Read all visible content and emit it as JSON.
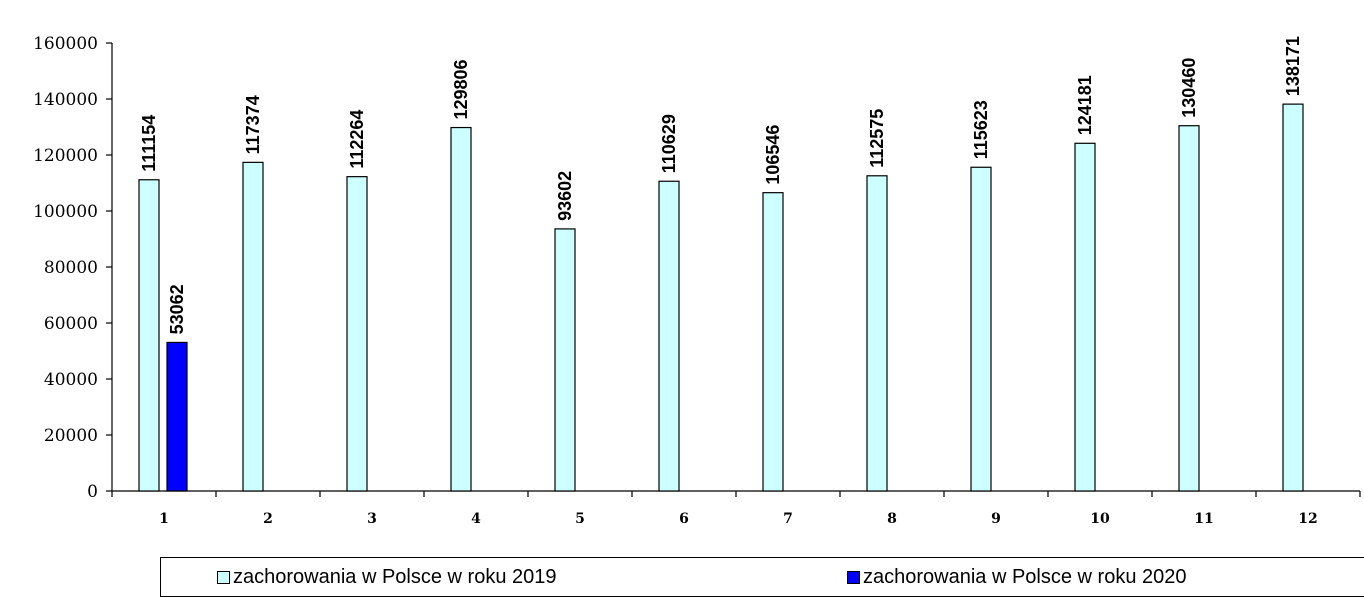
{
  "chart_data": {
    "type": "bar",
    "categories": [
      "1",
      "2",
      "3",
      "4",
      "5",
      "6",
      "7",
      "8",
      "9",
      "10",
      "11",
      "12"
    ],
    "series": [
      {
        "name": "zachorowania w Polsce w roku 2019",
        "color": "#ccffff",
        "values": [
          111154,
          117374,
          112264,
          129806,
          93602,
          110629,
          106546,
          112575,
          115623,
          124181,
          130460,
          138171
        ]
      },
      {
        "name": "zachorowania w Polsce w roku 2020",
        "color": "#0000ff",
        "values": [
          53062,
          null,
          null,
          null,
          null,
          null,
          null,
          null,
          null,
          null,
          null,
          null
        ]
      }
    ],
    "ylim": [
      0,
      160000
    ],
    "yticks": [
      "0",
      "20000",
      "40000",
      "60000",
      "80000",
      "100000",
      "120000",
      "140000",
      "160000"
    ],
    "title": "",
    "xlabel": "",
    "ylabel": "",
    "grid": false,
    "legend_position": "bottom"
  },
  "legend": {
    "items": [
      {
        "label": "zachorowania w Polsce w roku 2019",
        "color": "#ccffff"
      },
      {
        "label": "zachorowania w Polsce w roku 2020",
        "color": "#0000ff"
      }
    ]
  }
}
